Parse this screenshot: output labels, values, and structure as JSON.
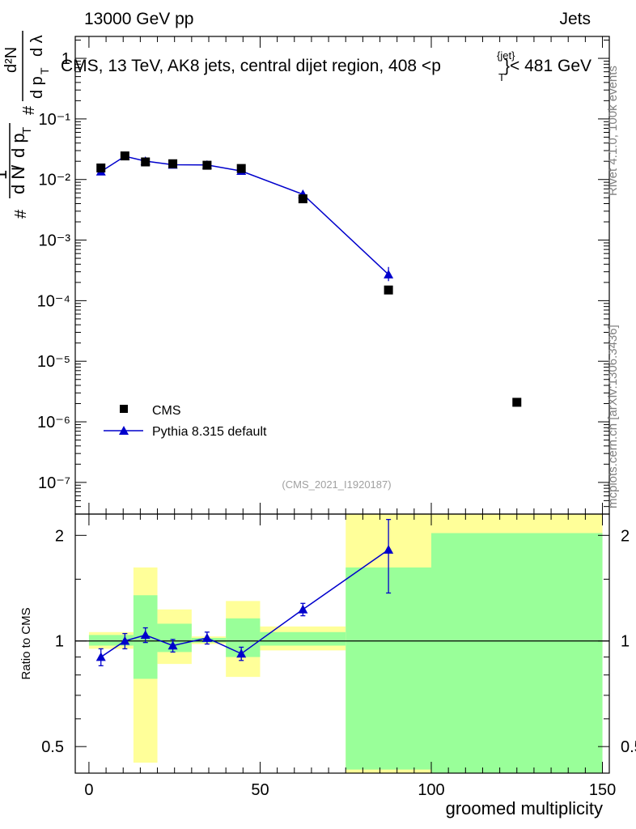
{
  "header": {
    "left": "13000 GeV pp",
    "right": "Jets"
  },
  "title": {
    "prefix": "CMS, 13 TeV, AK8 jets, central dijet region, 408 <p",
    "sup": "{jet}",
    "sub": "T",
    "suffix": "}< 481 GeV"
  },
  "side_labels": {
    "version": "Rivet 4.1.0,  100k events",
    "site": "mcplots.cern.ch [arXiv:1306.3436]"
  },
  "watermark": "(CMS_2021_I1920187)",
  "legend": [
    {
      "label": "CMS",
      "marker": "square",
      "color": "#000000"
    },
    {
      "label": "Pythia 8.315 default",
      "marker": "triangle",
      "color": "#0000cc"
    }
  ],
  "chart_data": [
    {
      "type": "scatter",
      "panel": "main",
      "yscale": "log",
      "ylabel": "1/N dN/dp_T d^2N/dp_T dλ",
      "ylabel_parts": {
        "one": "1",
        "hash1": "#",
        "hash2": "#",
        "dN": "d N",
        "dpT": "d p",
        "T": "T",
        "d2N": "d²N",
        "dpTdl": "d p",
        "lam": "d λ"
      },
      "xlim": [
        -4,
        152
      ],
      "ylim": [
        3e-08,
        2.3
      ],
      "yticks": [
        {
          "v": 1,
          "label": "1"
        },
        {
          "v": 0.1,
          "label": "10⁻¹"
        },
        {
          "v": 0.01,
          "label": "10⁻²"
        },
        {
          "v": 0.001,
          "label": "10⁻³"
        },
        {
          "v": 0.0001,
          "label": "10⁻⁴"
        },
        {
          "v": 1e-05,
          "label": "10⁻⁵"
        },
        {
          "v": 1e-06,
          "label": "10⁻⁶"
        },
        {
          "v": 1e-07,
          "label": "10⁻⁷"
        }
      ],
      "series": [
        {
          "name": "CMS",
          "x": [
            3.5,
            10.5,
            16.5,
            24.5,
            34.5,
            44.5,
            62.5,
            87.5,
            125
          ],
          "y": [
            0.0155,
            0.0245,
            0.0195,
            0.0182,
            0.0172,
            0.0152,
            0.0048,
            0.00015,
            2.1e-06
          ]
        },
        {
          "name": "Pythia 8.315 default",
          "x": [
            3.5,
            10.5,
            16.5,
            24.5,
            34.5,
            44.5,
            62.5,
            87.5
          ],
          "y": [
            0.0135,
            0.0242,
            0.0201,
            0.0175,
            0.0174,
            0.0138,
            0.0057,
            0.00027
          ],
          "yerr_lo": [
            0.0007,
            0.0008,
            0.0008,
            0.0007,
            0.0007,
            0.0007,
            0.0003,
            6e-05
          ],
          "yerr_hi": [
            0.0007,
            0.0008,
            0.0008,
            0.0007,
            0.0007,
            0.0007,
            0.0003,
            9e-05
          ]
        }
      ]
    },
    {
      "type": "scatter",
      "panel": "ratio",
      "yscale": "log",
      "xlabel": "groomed multiplicity",
      "ylabel": "Ratio to CMS",
      "xlim": [
        -4,
        152
      ],
      "ylim": [
        0.42,
        2.3
      ],
      "xticks": [
        0,
        50,
        100,
        150
      ],
      "yticks": [
        {
          "v": 0.5,
          "label": "0.5"
        },
        {
          "v": 1,
          "label": "1"
        },
        {
          "v": 2,
          "label": "2"
        }
      ],
      "bands": [
        {
          "x0": 0,
          "x1": 13,
          "y_lo": 0.95,
          "y_hi": 1.06,
          "g_lo": 0.97,
          "g_hi": 1.04
        },
        {
          "x0": 13,
          "x1": 20,
          "y_lo": 0.45,
          "y_hi": 1.62,
          "g_lo": 0.78,
          "g_hi": 1.35
        },
        {
          "x0": 20,
          "x1": 30,
          "y_lo": 0.86,
          "y_hi": 1.23,
          "g_lo": 0.93,
          "g_hi": 1.12
        },
        {
          "x0": 30,
          "x1": 40,
          "y_lo": 0.98,
          "y_hi": 1.03,
          "g_lo": 0.99,
          "g_hi": 1.02
        },
        {
          "x0": 40,
          "x1": 50,
          "y_lo": 0.79,
          "y_hi": 1.3,
          "g_lo": 0.9,
          "g_hi": 1.16
        },
        {
          "x0": 50,
          "x1": 75,
          "y_lo": 0.94,
          "y_hi": 1.1,
          "g_lo": 0.97,
          "g_hi": 1.06
        },
        {
          "x0": 75,
          "x1": 100,
          "y_lo": 0.3,
          "y_hi": 3.0,
          "g_lo": 0.43,
          "g_hi": 1.62
        },
        {
          "x0": 100,
          "x1": 150,
          "y_lo": 0.3,
          "y_hi": 3.0,
          "g_lo": 0.3,
          "g_hi": 2.03
        }
      ],
      "series": [
        {
          "name": "Pythia 8.315 default / CMS",
          "x": [
            3.5,
            10.5,
            16.5,
            24.5,
            34.5,
            44.5,
            62.5,
            87.5
          ],
          "y": [
            0.9,
            1.0,
            1.04,
            0.97,
            1.02,
            0.92,
            1.23,
            1.82
          ],
          "yerr_lo": [
            0.05,
            0.05,
            0.05,
            0.04,
            0.04,
            0.04,
            0.05,
            0.45
          ],
          "yerr_hi": [
            0.05,
            0.05,
            0.05,
            0.04,
            0.04,
            0.04,
            0.05,
            0.4
          ]
        }
      ]
    }
  ]
}
